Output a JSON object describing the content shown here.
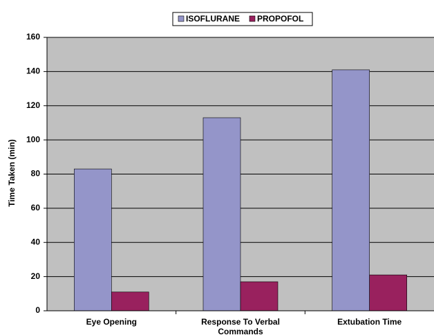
{
  "chart_data": {
    "type": "bar",
    "categories": [
      "Eye Opening",
      "Response To Verbal Commands",
      "Extubation Time"
    ],
    "series": [
      {
        "name": "ISOFLURANE",
        "color": "#9495c9",
        "values": [
          83,
          113,
          141
        ]
      },
      {
        "name": "PROPOFOL",
        "color": "#99215e",
        "values": [
          11,
          17,
          21
        ]
      }
    ],
    "y_label": "Time Taken (min)",
    "ylim": [
      0,
      160
    ],
    "yticks": [
      0,
      20,
      40,
      60,
      80,
      100,
      120,
      140,
      160
    ],
    "grid": true,
    "legend": "top",
    "plot_background": "#c0c0c0"
  }
}
